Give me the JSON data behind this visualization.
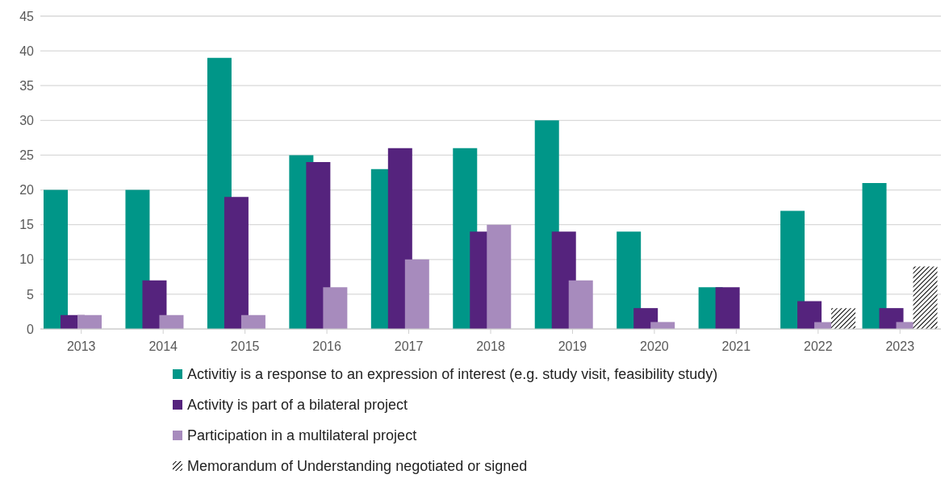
{
  "chart_data": {
    "type": "bar",
    "categories": [
      "2013",
      "2014",
      "2015",
      "2016",
      "2017",
      "2018",
      "2019",
      "2020",
      "2021",
      "2022",
      "2023"
    ],
    "series": [
      {
        "name": "Activitiy is a response to an expression of interest (e.g. study visit, feasibility study)",
        "color": "#009688",
        "values": [
          20,
          20,
          39,
          25,
          23,
          26,
          30,
          14,
          6,
          17,
          21
        ]
      },
      {
        "name": "Activity is part of a bilateral project",
        "color": "#55237d",
        "values": [
          2,
          7,
          19,
          24,
          26,
          14,
          14,
          3,
          6,
          4,
          3
        ]
      },
      {
        "name": "Participation in a multilateral project",
        "color": "#a78bbd",
        "values": [
          2,
          2,
          2,
          6,
          10,
          15,
          7,
          1,
          null,
          1,
          1
        ]
      },
      {
        "name": "Memorandum of Understanding negotiated or signed",
        "color": "#000000",
        "values": [
          null,
          null,
          null,
          null,
          null,
          null,
          null,
          null,
          null,
          3,
          9
        ]
      }
    ],
    "ylim": [
      0,
      45
    ],
    "yticks": [
      0,
      5,
      10,
      15,
      20,
      25,
      30,
      35,
      40,
      45
    ],
    "grid": "y",
    "legend": "bottom"
  }
}
